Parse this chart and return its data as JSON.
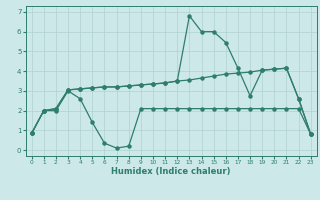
{
  "xlabel": "Humidex (Indice chaleur)",
  "xlim": [
    -0.5,
    23.5
  ],
  "ylim": [
    -0.3,
    7.3
  ],
  "xticks": [
    0,
    1,
    2,
    3,
    4,
    5,
    6,
    7,
    8,
    9,
    10,
    11,
    12,
    13,
    14,
    15,
    16,
    17,
    18,
    19,
    20,
    21,
    22,
    23
  ],
  "yticks": [
    0,
    1,
    2,
    3,
    4,
    5,
    6,
    7
  ],
  "bg_color": "#cde8e8",
  "line_color": "#2e7d6e",
  "grid_color": "#b0d0d0",
  "line1_y": [
    0.85,
    2.0,
    2.0,
    3.0,
    2.6,
    1.4,
    0.35,
    0.1,
    0.2,
    2.1,
    2.1,
    2.1,
    2.1,
    2.1,
    2.1,
    2.1,
    2.1,
    2.1,
    2.1,
    2.1,
    2.1,
    2.1,
    2.1,
    0.8
  ],
  "line2_y": [
    0.85,
    2.0,
    2.1,
    3.05,
    3.1,
    3.15,
    3.2,
    3.2,
    3.25,
    3.3,
    3.35,
    3.4,
    3.5,
    3.55,
    3.65,
    3.75,
    3.85,
    3.9,
    3.95,
    4.05,
    4.1,
    4.15,
    2.6,
    0.8
  ],
  "line3_y": [
    0.85,
    2.0,
    2.1,
    3.05,
    3.1,
    3.15,
    3.2,
    3.2,
    3.25,
    3.3,
    3.35,
    3.4,
    3.5,
    6.8,
    6.0,
    6.0,
    5.45,
    4.15,
    2.75,
    4.05,
    4.1,
    4.15,
    2.6,
    0.8
  ]
}
